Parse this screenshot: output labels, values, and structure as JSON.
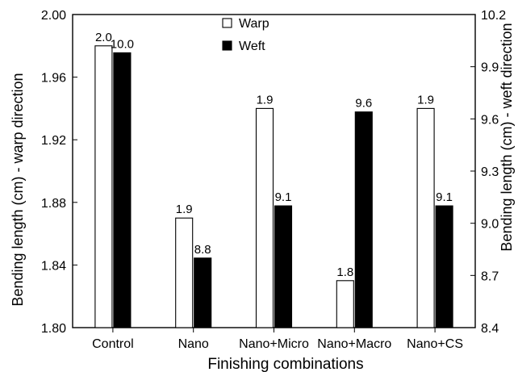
{
  "chart_data": {
    "type": "bar",
    "title": "",
    "xlabel": "Finishing combinations",
    "ylabel_left": "Bending length (cm) - warp direction",
    "ylabel_right": "Bending length (cm) - weft direction",
    "categories": [
      "Control",
      "Nano",
      "Nano+Micro",
      "Nano+Macro",
      "Nano+CS"
    ],
    "ylim_left": [
      1.8,
      2.0
    ],
    "yticks_left": [
      "1.80",
      "1.84",
      "1.88",
      "1.92",
      "1.96",
      "2.00"
    ],
    "ylim_right": [
      8.4,
      10.2
    ],
    "yticks_right": [
      "8.4",
      "8.7",
      "9.0",
      "9.3",
      "9.6",
      "9.9",
      "10.2"
    ],
    "grid": false,
    "legend_position": "top-center",
    "series": [
      {
        "name": "Warp",
        "axis": "left",
        "color": "#ffffff",
        "values": [
          1.98,
          1.87,
          1.94,
          1.83,
          1.94
        ],
        "labels": [
          "2.0",
          "1.9",
          "1.9",
          "1.8",
          "1.9"
        ]
      },
      {
        "name": "Weft",
        "axis": "right",
        "color": "#000000",
        "values": [
          9.98,
          8.8,
          9.1,
          9.64,
          9.1
        ],
        "labels": [
          "10.0",
          "8.8",
          "9.1",
          "9.6",
          "9.1"
        ]
      }
    ]
  }
}
